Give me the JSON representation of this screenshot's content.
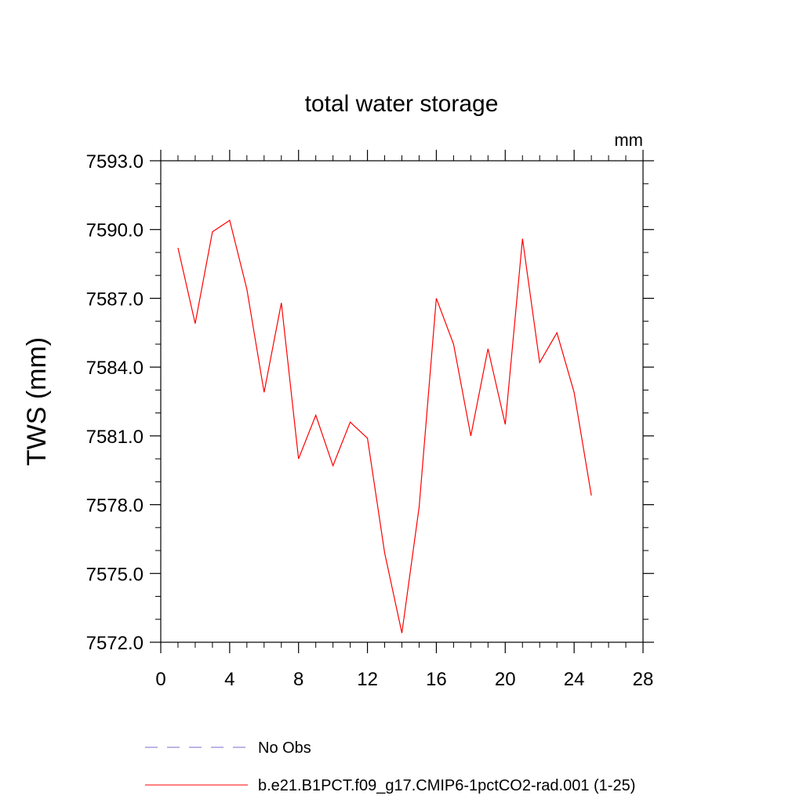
{
  "chart_data": {
    "type": "line",
    "title": "total water storage",
    "units": "mm",
    "xlabel": "",
    "ylabel": "TWS  (mm)",
    "xlim": [
      0,
      28
    ],
    "ylim": [
      7572.0,
      7593.0
    ],
    "x_ticks": [
      "0",
      "4",
      "8",
      "12",
      "16",
      "20",
      "24",
      "28"
    ],
    "y_ticks": [
      "7572.0",
      "7575.0",
      "7578.0",
      "7581.0",
      "7584.0",
      "7587.0",
      "7590.0",
      "7593.0"
    ],
    "grid": false,
    "legend_position": "bottom",
    "series": [
      {
        "name": "b.e21.B1PCT.f09_g17.CMIP6-1pctCO2-rad.001 (1-25)",
        "color": "#ff0000",
        "x": [
          1,
          2,
          3,
          4,
          5,
          6,
          7,
          8,
          9,
          10,
          11,
          12,
          13,
          14,
          15,
          16,
          17,
          18,
          19,
          20,
          21,
          22,
          23,
          24,
          25
        ],
        "y": [
          7589.2,
          7585.9,
          7589.9,
          7590.4,
          7587.4,
          7582.9,
          7586.8,
          7580.0,
          7581.9,
          7579.7,
          7581.6,
          7580.9,
          7575.9,
          7572.4,
          7577.9,
          7587.0,
          7585.0,
          7581.0,
          7584.8,
          7581.5,
          7589.6,
          7584.2,
          7585.5,
          7582.9,
          7578.4
        ]
      }
    ],
    "legend": [
      {
        "label": "No Obs",
        "color": "#7b68c8",
        "style": "dashed"
      },
      {
        "label": "b.e21.B1PCT.f09_g17.CMIP6-1pctCO2-rad.001 (1-25)",
        "color": "#ff0000",
        "style": "solid"
      }
    ]
  }
}
